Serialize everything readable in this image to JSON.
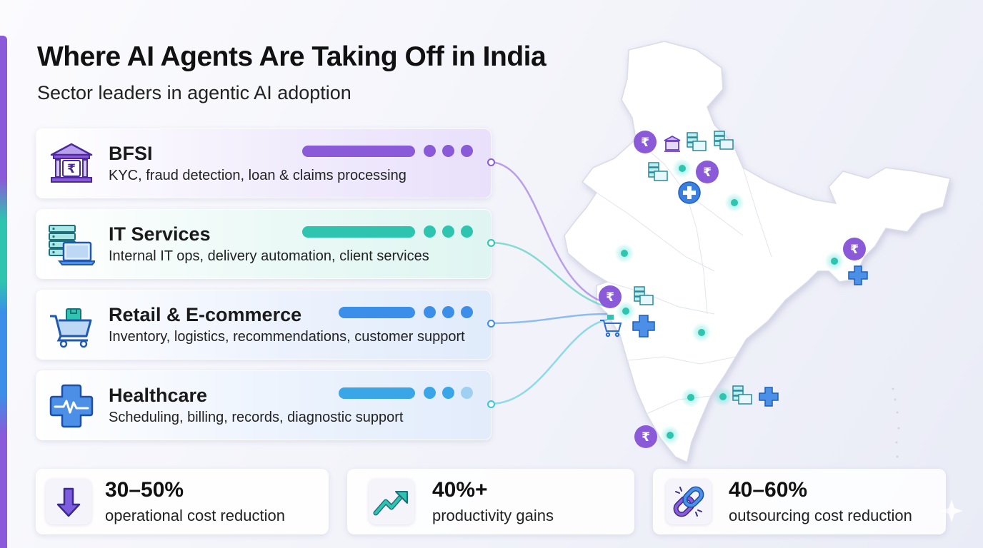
{
  "header": {
    "title": "Where AI Agents Are Taking Off in India",
    "subtitle": "Sector leaders in agentic AI adoption"
  },
  "sectors": [
    {
      "name": "BFSI",
      "description": "KYC, fraud detection, loan & claims processing",
      "icon": "bank-rupee-icon",
      "color": "#8a5ad8",
      "dots": 3
    },
    {
      "name": "IT Services",
      "description": "Internal IT ops, delivery automation, client services",
      "icon": "server-laptop-icon",
      "color": "#2ec4b0",
      "dots": 3
    },
    {
      "name": "Retail & E-commerce",
      "description": "Inventory, logistics, recommendations, customer support",
      "icon": "shopping-cart-icon",
      "color": "#3b8fe8",
      "dots": 3
    },
    {
      "name": "Healthcare",
      "description": "Scheduling, billing, records, diagnostic support",
      "icon": "medical-cross-icon",
      "color": "#3aa6e8",
      "dots": 2.5
    }
  ],
  "stats": [
    {
      "value": "30–50%",
      "label": "operational cost reduction",
      "icon": "down-arrow-icon"
    },
    {
      "value": "40%+",
      "label": "productivity gains",
      "icon": "trend-up-icon"
    },
    {
      "value": "40–60%",
      "label": "outsourcing cost reduction",
      "icon": "chain-link-icon"
    }
  ],
  "map": {
    "region": "India",
    "symbol": "₹"
  }
}
